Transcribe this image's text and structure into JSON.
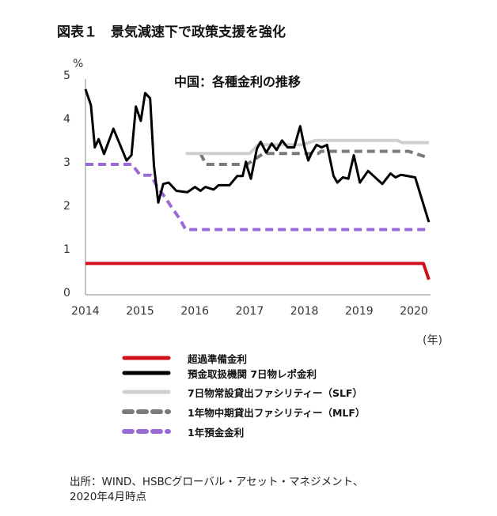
{
  "figure_title": "図表１　景気減速下で政策支援を強化",
  "source_lines": [
    "出所：WIND、HSBCグローバル・アセット・マネジメント、",
    "2020年4月時点"
  ],
  "chart_data": {
    "type": "line",
    "title": "中国：各種金利の推移",
    "ylabel": "%",
    "xlabel": "(年)",
    "xlim": [
      2014,
      2020.3
    ],
    "ylim": [
      0,
      5
    ],
    "x_ticks": [
      "2014",
      "2015",
      "2016",
      "2017",
      "2018",
      "2019",
      "2020"
    ],
    "y_ticks": [
      "0",
      "1",
      "2",
      "3",
      "4",
      "5"
    ],
    "grid": false,
    "legend_position": "bottom",
    "series": [
      {
        "name": "超過準備金利",
        "color": "#d0101a",
        "style": "solid",
        "width": 4,
        "points": [
          [
            2014.0,
            0.72
          ],
          [
            2020.17,
            0.72
          ],
          [
            2020.27,
            0.35
          ]
        ]
      },
      {
        "name": "預金取扱機関 7日物レポ金利",
        "color": "#000000",
        "style": "solid",
        "width": 3,
        "points": [
          [
            2014.0,
            4.73
          ],
          [
            2014.1,
            4.36
          ],
          [
            2014.17,
            3.39
          ],
          [
            2014.24,
            3.58
          ],
          [
            2014.34,
            3.24
          ],
          [
            2014.51,
            3.82
          ],
          [
            2014.75,
            3.09
          ],
          [
            2014.84,
            3.21
          ],
          [
            2014.92,
            4.33
          ],
          [
            2015.01,
            4.0
          ],
          [
            2015.09,
            4.64
          ],
          [
            2015.18,
            4.52
          ],
          [
            2015.25,
            2.97
          ],
          [
            2015.33,
            2.12
          ],
          [
            2015.42,
            2.55
          ],
          [
            2015.52,
            2.58
          ],
          [
            2015.66,
            2.39
          ],
          [
            2015.86,
            2.36
          ],
          [
            2016.0,
            2.48
          ],
          [
            2016.1,
            2.39
          ],
          [
            2016.19,
            2.48
          ],
          [
            2016.34,
            2.42
          ],
          [
            2016.43,
            2.52
          ],
          [
            2016.63,
            2.52
          ],
          [
            2016.77,
            2.73
          ],
          [
            2016.87,
            2.73
          ],
          [
            2016.93,
            3.06
          ],
          [
            2016.96,
            2.91
          ],
          [
            2017.02,
            2.67
          ],
          [
            2017.13,
            3.36
          ],
          [
            2017.2,
            3.52
          ],
          [
            2017.3,
            3.27
          ],
          [
            2017.4,
            3.48
          ],
          [
            2017.49,
            3.33
          ],
          [
            2017.59,
            3.55
          ],
          [
            2017.69,
            3.39
          ],
          [
            2017.81,
            3.39
          ],
          [
            2017.92,
            3.88
          ],
          [
            2018.0,
            3.39
          ],
          [
            2018.07,
            3.09
          ],
          [
            2018.12,
            3.24
          ],
          [
            2018.22,
            3.45
          ],
          [
            2018.31,
            3.39
          ],
          [
            2018.41,
            3.45
          ],
          [
            2018.53,
            2.73
          ],
          [
            2018.6,
            2.58
          ],
          [
            2018.7,
            2.7
          ],
          [
            2018.8,
            2.67
          ],
          [
            2018.9,
            3.21
          ],
          [
            2019.01,
            2.58
          ],
          [
            2019.16,
            2.85
          ],
          [
            2019.42,
            2.55
          ],
          [
            2019.57,
            2.79
          ],
          [
            2019.66,
            2.7
          ],
          [
            2019.76,
            2.76
          ],
          [
            2020.02,
            2.7
          ],
          [
            2020.27,
            1.67
          ]
        ]
      },
      {
        "name": "7日物常設貸出ファシリティー（SLF）",
        "color": "#cfcfcf",
        "style": "solid",
        "width": 4,
        "points": [
          [
            2015.83,
            3.25
          ],
          [
            2017.0,
            3.25
          ],
          [
            2017.15,
            3.45
          ],
          [
            2017.95,
            3.45
          ],
          [
            2018.2,
            3.55
          ],
          [
            2019.7,
            3.55
          ],
          [
            2019.78,
            3.5
          ],
          [
            2020.27,
            3.5
          ]
        ]
      },
      {
        "name": "1年物中期貸出ファシリティー（MLF）",
        "color": "#7a7a7a",
        "style": "dashed",
        "width": 4,
        "points": [
          [
            2016.1,
            3.25
          ],
          [
            2016.2,
            3.0
          ],
          [
            2016.95,
            3.0
          ],
          [
            2017.25,
            3.25
          ],
          [
            2018.25,
            3.25
          ],
          [
            2018.3,
            3.3
          ],
          [
            2019.9,
            3.3
          ],
          [
            2020.27,
            3.15
          ]
        ]
      },
      {
        "name": "1年預金金利",
        "color": "#9b6ad6",
        "style": "dashed",
        "width": 4,
        "points": [
          [
            2014.0,
            3.0
          ],
          [
            2014.85,
            3.0
          ],
          [
            2015.0,
            2.75
          ],
          [
            2015.2,
            2.75
          ],
          [
            2015.3,
            2.5
          ],
          [
            2015.45,
            2.25
          ],
          [
            2015.58,
            2.0
          ],
          [
            2015.72,
            1.75
          ],
          [
            2015.83,
            1.5
          ],
          [
            2020.27,
            1.5
          ]
        ]
      }
    ]
  }
}
